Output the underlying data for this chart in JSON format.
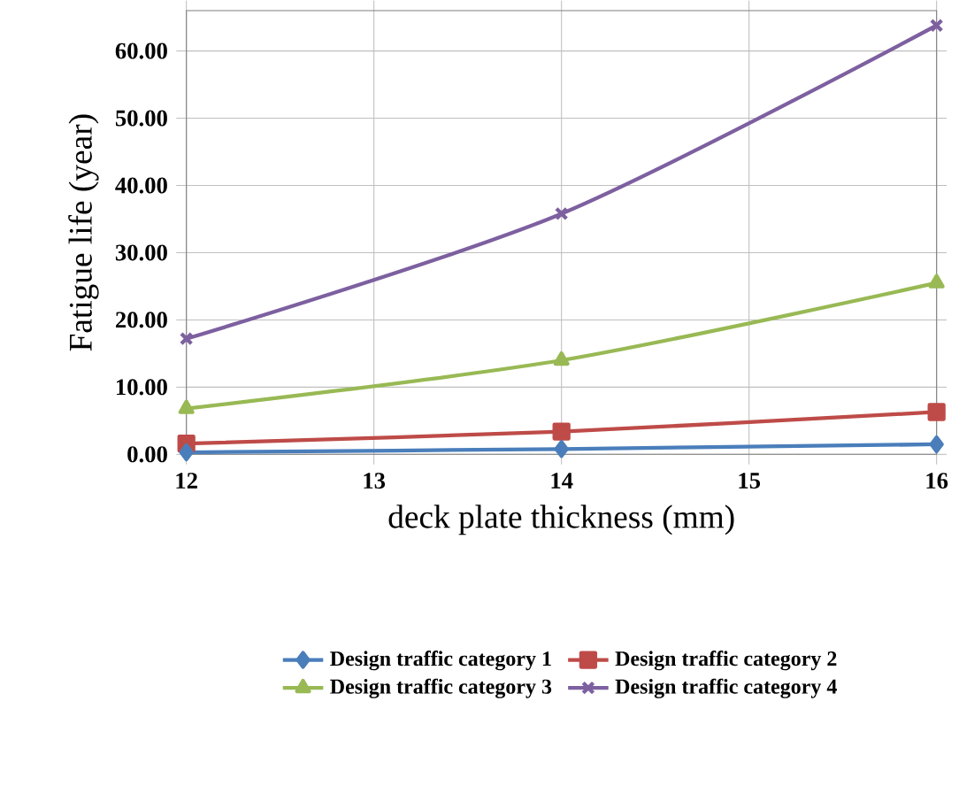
{
  "chart_data": {
    "type": "line",
    "xlabel": "deck plate thickness (mm)",
    "ylabel": "Fatigue life (year)",
    "x": [
      12,
      14,
      16
    ],
    "xlim": [
      12,
      16
    ],
    "xticks": [
      12,
      13,
      14,
      15,
      16
    ],
    "ylim": [
      0,
      66
    ],
    "yticks": [
      {
        "value": 0,
        "label": "0.00"
      },
      {
        "value": 10,
        "label": "10.00"
      },
      {
        "value": 20,
        "label": "20.00"
      },
      {
        "value": 30,
        "label": "30.00"
      },
      {
        "value": 40,
        "label": "40.00"
      },
      {
        "value": 50,
        "label": "50.00"
      },
      {
        "value": 60,
        "label": "60.00"
      }
    ],
    "grid": true,
    "legend": "bottom",
    "series": [
      {
        "name": "Design traffic category 1",
        "color": "#4a7ebb",
        "marker": "diamond",
        "values": [
          0.3,
          0.8,
          1.5
        ]
      },
      {
        "name": "Design traffic category 2",
        "color": "#be4b48",
        "marker": "square",
        "values": [
          1.6,
          3.4,
          6.3
        ]
      },
      {
        "name": "Design traffic category 3",
        "color": "#98b954",
        "marker": "triangle",
        "values": [
          6.8,
          14.0,
          25.5
        ]
      },
      {
        "name": "Design traffic category 4",
        "color": "#7d60a0",
        "marker": "cross",
        "values": [
          17.2,
          35.8,
          63.8
        ]
      }
    ]
  }
}
